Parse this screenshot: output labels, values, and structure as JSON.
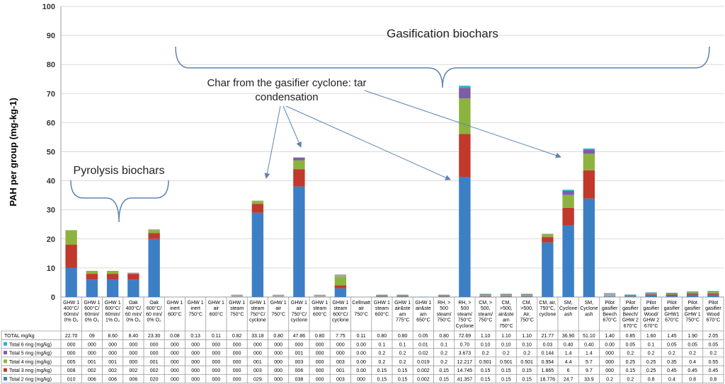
{
  "chart_data": {
    "type": "bar",
    "stacked": true,
    "ylabel": "PAH per group (mg-kg-1)",
    "ylim": [
      0,
      100
    ],
    "yticks": [
      0,
      10,
      20,
      30,
      40,
      50,
      60,
      70,
      80,
      90,
      100
    ],
    "grid": true,
    "legend_position": "left of data table",
    "categories": [
      [
        "GHW 1",
        "400°C/",
        "60min/",
        "0% O₂"
      ],
      [
        "GHW 1",
        "600°C/",
        "60min/",
        "0% O₂"
      ],
      [
        "GHW 1",
        "600°C/",
        "60min/",
        "1% O₂"
      ],
      [
        "Oak",
        "400°C/",
        "60 min/",
        "0% O₂"
      ],
      [
        "Oak",
        "600°C/",
        "60 min/",
        "0% O₂"
      ],
      [
        "GHW 1",
        "inert",
        "600°C"
      ],
      [
        "GHW 1",
        "inert",
        "750°C"
      ],
      [
        "GHW 1",
        "air",
        "600°C"
      ],
      [
        "GHW 1",
        "steam",
        "750°C"
      ],
      [
        "GHW 1",
        "steam",
        "750°C/",
        "cyclone"
      ],
      [
        "GHW 1",
        "air",
        "750°C"
      ],
      [
        "GHW 1",
        "air",
        "750°C/",
        "cyclone"
      ],
      [
        "GHW 1",
        "steam",
        "600°C"
      ],
      [
        "GHW 1",
        "steam",
        "600°C/",
        "cyclone"
      ],
      [
        "Cellmatt",
        "air",
        "750°C"
      ],
      [
        "GHW 1",
        "steam",
        "600°C"
      ],
      [
        "GHW 1",
        "air&ste",
        "am",
        "775°C"
      ],
      [
        "GHW 1",
        "air&ste",
        "am",
        "650°C"
      ],
      [
        "RH, >",
        "500",
        "steam/",
        "750°C"
      ],
      [
        "RH, >",
        "500",
        "steam/",
        "750°C",
        "Cyclone"
      ],
      [
        "CM, >",
        "500,",
        "steam/",
        "750°C"
      ],
      [
        "CM,",
        ">500,",
        "air&ste",
        "am",
        "750°C"
      ],
      [
        "CM,",
        ">500,",
        "Air,",
        "750°C"
      ],
      [
        "CM, air,",
        "750°C,",
        "cyclone"
      ],
      [
        "SM,",
        "Cyclone",
        "ash"
      ],
      [
        "SM,",
        "Cyclone",
        "ash"
      ],
      [
        "Pilot",
        "gasifier",
        "Beech",
        "670°C"
      ],
      [
        "Pilot",
        "gasifier",
        "Beech/",
        "GHW 2",
        "670°C"
      ],
      [
        "Pilot",
        "gasifier",
        "Wood/",
        "GHW 2",
        "670°C"
      ],
      [
        "Pilot",
        "gasifier",
        "GHW1",
        "670°C"
      ],
      [
        "Pilot",
        "gasifier",
        "GHW 1",
        "750°C"
      ],
      [
        "Pilot",
        "gasifier",
        "Wood",
        "670°C"
      ]
    ],
    "series": [
      {
        "name": "Total 2 ring (mg/kg)",
        "color": "#3d7fc4",
        "values": [
          10,
          6,
          6,
          6,
          20,
          0,
          0,
          0,
          0,
          29,
          0,
          38,
          0,
          3,
          0,
          0.15,
          0.15,
          0.002,
          0.15,
          41.357,
          0.15,
          0.15,
          0.15,
          18.776,
          24.7,
          33.9,
          0.2,
          0.2,
          0.8,
          0.4,
          0.8,
          0.8
        ]
      },
      {
        "name": "Total 3 ring (mg/kg)",
        "color": "#c0392b",
        "values": [
          8,
          2,
          2,
          2,
          2,
          0,
          0,
          0,
          0,
          3,
          0,
          6,
          0,
          1,
          0,
          0.15,
          0.15,
          0.002,
          0.15,
          14.745,
          0.15,
          0.15,
          0.15,
          1.865,
          6,
          9.7,
          0,
          0.15,
          0.25,
          0.45,
          0.45,
          0.45
        ]
      },
      {
        "name": "Total 4 ring (mg/kg)",
        "color": "#8db33f",
        "values": [
          5,
          1,
          1,
          0,
          1,
          0,
          0,
          0,
          0,
          1,
          0,
          3,
          0,
          3,
          0,
          0.2,
          0.2,
          0.019,
          0.2,
          12.217,
          0.501,
          0.501,
          0.501,
          0.954,
          4.4,
          5.7,
          0,
          0.25,
          0.25,
          0.35,
          0.4,
          0.55
        ]
      },
      {
        "name": "Total 5 ring (mg/kg)",
        "color": "#7b5ea7",
        "values": [
          0,
          0,
          0,
          0,
          0,
          0,
          0,
          0,
          0,
          0,
          0,
          1,
          0,
          0,
          0,
          0.2,
          0.2,
          0.02,
          0.2,
          3.673,
          0.2,
          0.2,
          0.2,
          0.144,
          1.4,
          1.4,
          0,
          0.2,
          0.2,
          0.2,
          0.2,
          0.2
        ]
      },
      {
        "name": "Total 6 ring (mg/kg)",
        "color": "#2bb3c9",
        "values": [
          0,
          0,
          0,
          0,
          0,
          0,
          0,
          0,
          0,
          0,
          0,
          0,
          0,
          0,
          0,
          0.1,
          0.1,
          0.01,
          0.1,
          0.7,
          0.1,
          0.1,
          0.1,
          0.03,
          0.4,
          0.4,
          0,
          0.05,
          0.1,
          0.05,
          0.05,
          0.05
        ]
      }
    ],
    "totals": [
      22.7,
      9,
      8.6,
      8.4,
      23.3,
      0.08,
      0.13,
      0.11,
      0.82,
      33.18,
      0.8,
      47.86,
      0.8,
      7.75,
      0.11,
      0.8,
      0.8,
      0.05,
      0.8,
      72.69,
      1.1,
      1.1,
      1.1,
      21.77,
      36.9,
      51.1,
      1.4,
      0.85,
      1.6,
      1.45,
      1.9,
      2.05
    ],
    "table": {
      "rows": [
        {
          "label": "TOTAL mg/kg",
          "marker": "",
          "cells": [
            "22.70",
            "09",
            "8.60",
            "8.40",
            "23.30",
            "0.08",
            "0.13",
            "0.11",
            "0.82",
            "33.18",
            "0.80",
            "47.86",
            "0.80",
            "7.75",
            "0.11",
            "0.80",
            "0.80",
            "0.05",
            "0.80",
            "72.69",
            "1.10",
            "1.10",
            "1.10",
            "21.77",
            "36.90",
            "51.10",
            "1.40",
            "0.85",
            "1.60",
            "1.45",
            "1.90",
            "2.05"
          ]
        },
        {
          "label": "Total 6 ring (mg/kg)",
          "marker": "#2bb3c9",
          "cells": [
            "000",
            "000",
            "000",
            "000",
            "000",
            "000",
            "000",
            "000",
            "000",
            "000",
            "000",
            "000",
            "000",
            "000",
            "0.00",
            "0.1",
            "0.1",
            "0.01",
            "0.1",
            "0.70",
            "0.10",
            "0.10",
            "0.10",
            "0.03",
            "0.40",
            "0.40",
            "0.00",
            "0.05",
            "0.1",
            "0.05",
            "0.05",
            "0.05"
          ]
        },
        {
          "label": "Total 5 ring (mg/kg)",
          "marker": "#7b5ea7",
          "cells": [
            "000",
            "000",
            "000",
            "000",
            "000",
            "000",
            "000",
            "000",
            "000",
            "000",
            "000",
            "001",
            "000",
            "000",
            "0.00",
            "0.2",
            "0.2",
            "0.02",
            "0.2",
            "3.673",
            "0.2",
            "0.2",
            "0.2",
            "0.144",
            "1.4",
            "1.4",
            "000",
            "0.2",
            "0.2",
            "0.2",
            "0.2",
            "0.2"
          ]
        },
        {
          "label": "Total 4 ring (mg/kg)",
          "marker": "#8db33f",
          "cells": [
            "005",
            "001",
            "001",
            "000",
            "001",
            "000",
            "000",
            "000",
            "000",
            "001",
            "000",
            "003",
            "000",
            "003",
            "0.00",
            "0.2",
            "0.2",
            "0.019",
            "0.2",
            "12.217",
            "0.501",
            "0.501",
            "0.501",
            "0.954",
            "4.4",
            "5.7",
            "000",
            "0.25",
            "0.25",
            "0.35",
            "0.4",
            "0.55"
          ]
        },
        {
          "label": "Total 3 ring (mg/kg)",
          "marker": "#c0392b",
          "cells": [
            "008",
            "002",
            "002",
            "002",
            "002",
            "000",
            "000",
            "000",
            "000",
            "003",
            "000",
            "006",
            "000",
            "001",
            "0.00",
            "0.15",
            "0.15",
            "0.002",
            "0.15",
            "14.745",
            "0.15",
            "0.15",
            "0.15",
            "1.865",
            "6",
            "9.7",
            "000",
            "0.15",
            "0.25",
            "0.45",
            "0.45",
            "0.45"
          ]
        },
        {
          "label": "Total 2 ring (mg/kg)",
          "marker": "#3d7fc4",
          "cells": [
            "010",
            "006",
            "006",
            "006",
            "020",
            "000",
            "000",
            "000",
            "000",
            "029",
            "000",
            "038",
            "000",
            "003",
            "000",
            "0.15",
            "0.15",
            "0.002",
            "0.15",
            "41.357",
            "0.15",
            "0.15",
            "0.15",
            "18.776",
            "24.7",
            "33.9",
            "0.2",
            "0.2",
            "0.8",
            "0.4",
            "0.8",
            "0.8"
          ]
        }
      ]
    },
    "annotations": {
      "gasification": "Gasification biochars",
      "cyclone_line1": "Char from the gasifier cyclone: tar",
      "cyclone_line2": "condensation",
      "pyrolysis": "Pyrolysis biochars"
    }
  }
}
